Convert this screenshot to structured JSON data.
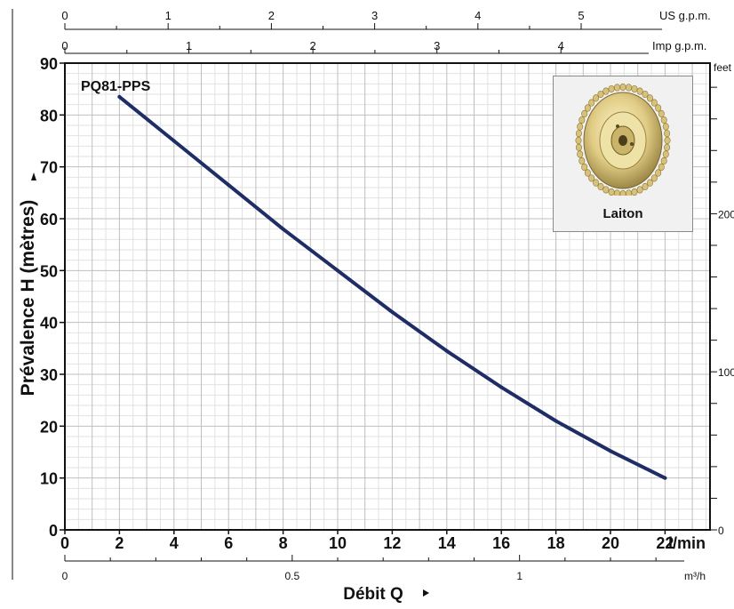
{
  "chart_data": {
    "type": "line",
    "series_label": "PQ81-PPS",
    "ylabel": "Prévalence H (mètres)",
    "xlabel": "Débit Q",
    "x_unit": "l/min",
    "x_ticks": [
      "0",
      "2",
      "4",
      "6",
      "8",
      "10",
      "12",
      "14",
      "16",
      "18",
      "20",
      "22"
    ],
    "y_ticks": [
      "0",
      "10",
      "20",
      "30",
      "40",
      "50",
      "60",
      "70",
      "80",
      "90"
    ],
    "xlim": [
      0,
      24.5
    ],
    "ylim": [
      0,
      90
    ],
    "grid": true,
    "line_color": "#1f2d66",
    "x": [
      2,
      4,
      6,
      8,
      10,
      12,
      14,
      16,
      18,
      20,
      22
    ],
    "y": [
      83.5,
      75,
      66.5,
      58,
      50,
      42,
      34.5,
      27.5,
      21,
      15.2,
      10
    ],
    "top_axis_us": {
      "unit": "US g.p.m.",
      "ticks": [
        "0",
        "1",
        "2",
        "3",
        "4",
        "5"
      ]
    },
    "top_axis_imp": {
      "unit": "Imp g.p.m.",
      "ticks": [
        "0",
        "1",
        "2",
        "3",
        "4"
      ]
    },
    "right_axis": {
      "unit": "feet",
      "ticks": [
        "0",
        "100",
        "200"
      ]
    },
    "bottom_axis2": {
      "unit": "m³/h",
      "ticks": [
        "0",
        "0.5",
        "1"
      ]
    }
  },
  "inset": {
    "caption": "Laiton",
    "picture": "brass-impeller-icon"
  }
}
